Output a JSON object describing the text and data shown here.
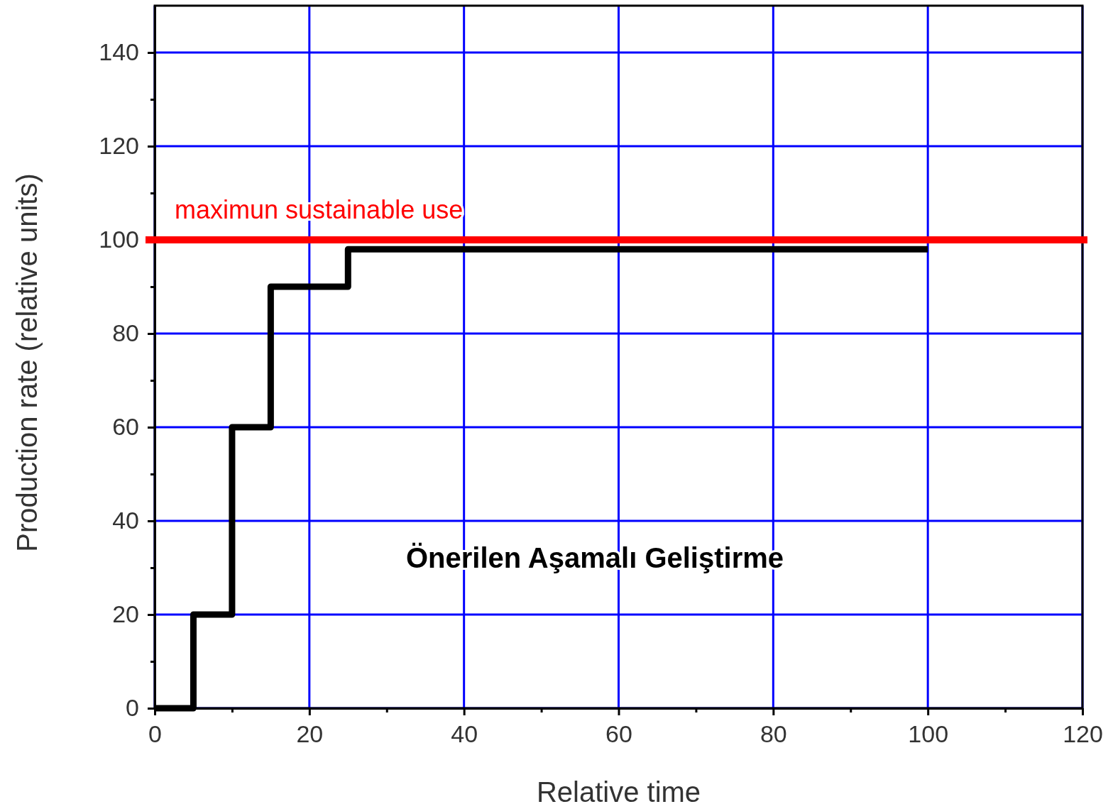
{
  "chart_data": {
    "type": "step",
    "xlabel": "Relative time",
    "ylabel": "Production rate (relative units)",
    "x": [
      0,
      5,
      10,
      15,
      25,
      100
    ],
    "series": [
      {
        "color": "#000000",
        "values": [
          0,
          20,
          60,
          90,
          98,
          98
        ]
      }
    ],
    "xlim": [
      0,
      120
    ],
    "ylim": [
      0,
      150
    ],
    "xticks": [
      0,
      {
        "value": 10,
        "label": null
      },
      20,
      {
        "value": 30,
        "label": null
      },
      40,
      {
        "value": 50,
        "label": null
      },
      60,
      {
        "value": 70,
        "label": null
      },
      80,
      {
        "value": 90,
        "label": null
      },
      100,
      {
        "value": 110,
        "label": null
      },
      120
    ],
    "yticks": [
      0,
      {
        "value": 10,
        "label": null
      },
      20,
      {
        "value": 30,
        "label": null
      },
      40,
      {
        "value": 50,
        "label": null
      },
      60,
      {
        "value": 70,
        "label": null
      },
      80,
      {
        "value": 90,
        "label": null
      },
      100,
      {
        "value": 110,
        "label": null
      },
      120,
      {
        "value": 130,
        "label": null
      },
      140
    ],
    "grid": true,
    "ref_lines": [
      {
        "axis": "y",
        "value": 100,
        "label": "maximun sustainable use",
        "color": "#ff0000"
      }
    ],
    "annotations": [
      "Önerilen Aşamalı Geliştirme"
    ]
  }
}
